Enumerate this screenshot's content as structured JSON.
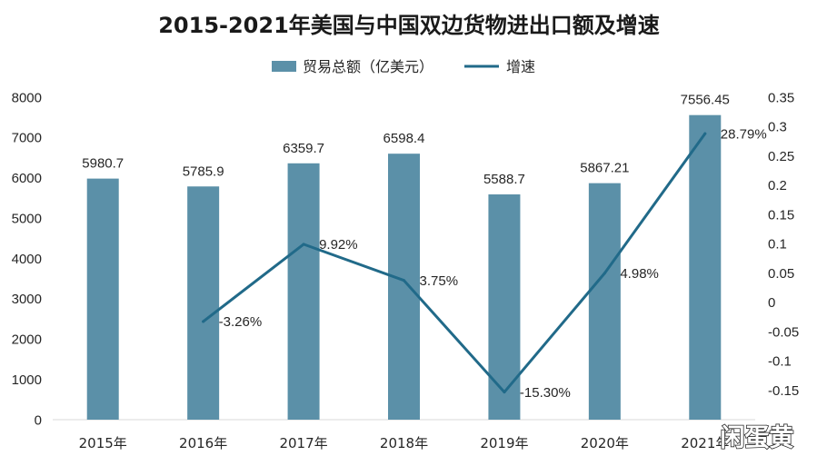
{
  "chart_data": {
    "type": "bar",
    "title": "2015-2021年美国与中国双边货物进出口额及增速",
    "categories": [
      "2015年",
      "2016年",
      "2017年",
      "2018年",
      "2019年",
      "2020年",
      "2021年"
    ],
    "series": [
      {
        "name": "贸易总额（亿美元）",
        "type": "bar",
        "color": "#5b90a8",
        "values": [
          5980.7,
          5785.9,
          6359.7,
          6598.4,
          5588.7,
          5867.21,
          7556.45
        ]
      },
      {
        "name": "增速",
        "type": "line",
        "color": "#216a89",
        "values": [
          null,
          -0.0326,
          0.0992,
          0.0375,
          -0.153,
          0.0498,
          0.2879
        ],
        "data_labels": [
          null,
          "-3.26%",
          "9.92%",
          "3.75%",
          "-15.30%",
          "4.98%",
          "28.79%"
        ]
      }
    ],
    "y_left": {
      "range": [
        0,
        8000
      ],
      "ticks": [
        0,
        1000,
        2000,
        3000,
        4000,
        5000,
        6000,
        7000,
        8000
      ]
    },
    "y_right": {
      "range": [
        -0.2,
        0.35
      ],
      "ticks": [
        -0.15,
        -0.1,
        -0.05,
        0,
        0.05,
        0.1,
        0.15,
        0.2,
        0.25,
        0.3,
        0.35
      ]
    },
    "grid": false,
    "legend": "top",
    "axis_color": "#d9d9d9"
  },
  "watermark": "闲蛋黄"
}
